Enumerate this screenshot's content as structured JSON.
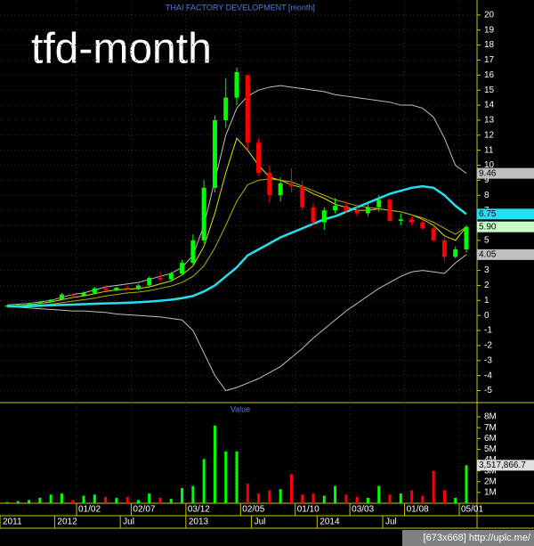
{
  "chart_data": {
    "type": "candlestick",
    "title": "THAI FACTORY DEVELOPMENT [month]",
    "subtitle": "tfd-month",
    "volume_title": "Value",
    "watermark": "[673x668] http://uplc.me/",
    "categories": [
      null,
      null,
      null,
      null,
      null,
      null,
      null,
      "01/02",
      null,
      null,
      null,
      null,
      "02/07",
      null,
      null,
      null,
      null,
      "03/12",
      null,
      null,
      null,
      null,
      "02/05",
      null,
      null,
      null,
      null,
      "01/10",
      null,
      null,
      null,
      null,
      "03/03",
      null,
      null,
      null,
      null,
      "01/08",
      null,
      null,
      null,
      null,
      "05/01"
    ],
    "periods": [
      "2011",
      null,
      null,
      null,
      null,
      "2012",
      null,
      null,
      null,
      null,
      null,
      "Jul",
      null,
      null,
      null,
      null,
      null,
      "2013",
      null,
      null,
      null,
      null,
      null,
      "Jul",
      null,
      null,
      null,
      null,
      null,
      "2014",
      null,
      null,
      null,
      null,
      null,
      "Jul",
      null,
      null,
      null,
      null,
      null,
      null,
      null
    ],
    "open": [
      0.6,
      0.65,
      0.7,
      0.8,
      0.9,
      1.05,
      1.4,
      1.3,
      1.5,
      1.8,
      1.7,
      1.85,
      1.75,
      2.0,
      2.5,
      2.4,
      2.8,
      3.5,
      5.0,
      8.5,
      13.0,
      14.5,
      16.0,
      11.5,
      9.5,
      8.0,
      8.8,
      8.6,
      7.2,
      6.2,
      7.0,
      7.3,
      7.0,
      6.8,
      7.2,
      7.7,
      6.3,
      6.4,
      6.2,
      5.8,
      5.0,
      3.9,
      4.4
    ],
    "high": [
      0.7,
      0.75,
      0.85,
      0.95,
      1.1,
      1.5,
      1.5,
      1.6,
      1.9,
      2.0,
      1.9,
      2.0,
      2.1,
      2.6,
      2.9,
      2.9,
      3.7,
      5.4,
      9.0,
      13.3,
      15.8,
      16.5,
      16.0,
      11.8,
      10.0,
      9.2,
      9.8,
      9.0,
      7.5,
      7.2,
      7.8,
      7.6,
      7.4,
      7.5,
      8.0,
      7.8,
      6.8,
      6.6,
      6.4,
      6.0,
      5.2,
      4.6,
      6.0
    ],
    "low": [
      0.55,
      0.6,
      0.65,
      0.75,
      0.85,
      1.0,
      1.2,
      1.25,
      1.45,
      1.6,
      1.6,
      1.7,
      1.7,
      1.9,
      2.3,
      2.3,
      2.7,
      3.4,
      4.8,
      8.2,
      12.5,
      14.0,
      11.0,
      9.3,
      7.5,
      7.6,
      8.2,
      7.0,
      6.0,
      5.7,
      6.8,
      6.8,
      6.6,
      6.6,
      6.9,
      6.2,
      6.0,
      6.0,
      5.7,
      4.9,
      3.6,
      3.8,
      4.2
    ],
    "close": [
      0.65,
      0.7,
      0.8,
      0.9,
      1.05,
      1.4,
      1.3,
      1.5,
      1.8,
      1.7,
      1.85,
      1.75,
      2.0,
      2.5,
      2.4,
      2.8,
      3.5,
      5.0,
      8.5,
      13.0,
      14.5,
      16.2,
      11.5,
      9.5,
      8.0,
      8.8,
      8.6,
      7.2,
      6.2,
      7.0,
      7.3,
      7.0,
      6.8,
      7.2,
      7.7,
      6.3,
      6.4,
      6.2,
      5.8,
      5.0,
      3.9,
      4.4,
      5.9
    ],
    "volume": [
      100000,
      200000,
      300000,
      500000,
      800000,
      900000,
      300000,
      700000,
      800000,
      600000,
      500000,
      600000,
      300000,
      900000,
      500000,
      400000,
      1400000,
      1600000,
      4100000,
      7200000,
      4800000,
      4800000,
      1800000,
      900000,
      1200000,
      1300000,
      2700000,
      800000,
      900000,
      700000,
      1600000,
      800000,
      600000,
      500000,
      1600000,
      800000,
      900000,
      1200000,
      700000,
      3000000,
      1200000,
      500000,
      3517866.7
    ],
    "up_color": "#00ff00",
    "down_color": "#ff0000",
    "overlays": [
      {
        "color": "#c0c0c0",
        "values": [
          0.7,
          0.75,
          0.8,
          0.9,
          1.0,
          1.2,
          1.4,
          1.5,
          1.7,
          1.9,
          2.0,
          2.1,
          2.2,
          2.4,
          2.6,
          2.8,
          3.2,
          4.0,
          6.0,
          9.0,
          12.0,
          13.8,
          14.6,
          15.0,
          15.2,
          15.3,
          15.2,
          15.1,
          15.0,
          14.9,
          14.7,
          14.6,
          14.5,
          14.4,
          14.3,
          14.2,
          14.0,
          14.0,
          13.8,
          13.2,
          11.8,
          10.0,
          9.46
        ]
      },
      {
        "color": "#c0c0c0",
        "values": [
          0.6,
          0.55,
          0.5,
          0.45,
          0.4,
          0.35,
          0.3,
          0.3,
          0.25,
          0.2,
          0.1,
          0.05,
          0,
          -0.05,
          -0.1,
          -0.2,
          -0.3,
          -1.0,
          -2.5,
          -4.0,
          -5.0,
          -4.8,
          -4.5,
          -4.2,
          -3.8,
          -3.4,
          -2.8,
          -2.2,
          -1.5,
          -0.9,
          -0.3,
          0.3,
          0.8,
          1.3,
          1.8,
          2.2,
          2.6,
          2.9,
          3.0,
          2.9,
          2.8,
          3.5,
          4.05
        ]
      },
      {
        "color": "#e0e000",
        "values": [
          0.6,
          0.65,
          0.7,
          0.8,
          0.9,
          1.05,
          1.2,
          1.3,
          1.45,
          1.6,
          1.7,
          1.75,
          1.8,
          1.9,
          2.1,
          2.3,
          2.7,
          3.3,
          4.6,
          6.8,
          9.5,
          11.8,
          11.0,
          10.0,
          9.2,
          9.0,
          8.7,
          8.5,
          8.1,
          7.8,
          7.4,
          7.2,
          7.0,
          7.0,
          7.1,
          7.0,
          6.9,
          6.7,
          6.4,
          6.0,
          5.3,
          5.0,
          5.9
        ]
      },
      {
        "color": "#b0b000",
        "values": [
          0.6,
          0.6,
          0.65,
          0.7,
          0.75,
          0.85,
          0.95,
          1.05,
          1.15,
          1.3,
          1.4,
          1.5,
          1.55,
          1.65,
          1.8,
          1.95,
          2.2,
          2.6,
          3.3,
          4.5,
          6.0,
          7.6,
          8.7,
          9.0,
          9.1,
          9.0,
          8.9,
          8.6,
          8.3,
          8.0,
          7.7,
          7.5,
          7.3,
          7.2,
          7.1,
          7.0,
          6.9,
          6.7,
          6.5,
          6.2,
          5.8,
          5.4,
          5.9
        ]
      },
      {
        "color": "#22e0f0",
        "values": [
          0.6,
          0.6,
          0.62,
          0.65,
          0.68,
          0.7,
          0.72,
          0.75,
          0.78,
          0.8,
          0.82,
          0.85,
          0.88,
          0.92,
          0.98,
          1.05,
          1.15,
          1.3,
          1.6,
          2.0,
          2.6,
          3.2,
          4.0,
          4.4,
          4.8,
          5.2,
          5.5,
          5.8,
          6.1,
          6.4,
          6.6,
          6.9,
          7.2,
          7.5,
          7.8,
          8.1,
          8.3,
          8.5,
          8.6,
          8.5,
          8.0,
          7.3,
          6.75
        ]
      }
    ],
    "price_labels": [
      {
        "value": 9.46,
        "label": "9.46",
        "color": "#c0c0c0"
      },
      {
        "value": 6.75,
        "label": "6.75",
        "color": "#22e0f0"
      },
      {
        "value": 5.9,
        "label": "5.90",
        "color": "#c8ffc8"
      },
      {
        "value": 4.05,
        "label": "4.05",
        "color": "#c0c0c0"
      }
    ],
    "volume_label": {
      "value": 3517866.7,
      "label": "3,517,866.7"
    },
    "ylim": [
      -5.8,
      21
    ],
    "yticks": [
      -5,
      -4,
      -3,
      -2,
      -1,
      0,
      1,
      2,
      3,
      4,
      5,
      6,
      7,
      8,
      9,
      10,
      11,
      12,
      13,
      14,
      15,
      16,
      17,
      18,
      19,
      20
    ],
    "vlim": [
      0,
      8500000
    ],
    "vticks": [
      {
        "value": 1000000,
        "label": "1M"
      },
      {
        "value": 2000000,
        "label": "2M"
      },
      {
        "value": 3000000,
        "label": "3M"
      },
      {
        "value": 4000000,
        "label": "4M"
      },
      {
        "value": 5000000,
        "label": "5M"
      },
      {
        "value": 6000000,
        "label": "6M"
      },
      {
        "value": 7000000,
        "label": "7M"
      },
      {
        "value": 8000000,
        "label": "8M"
      }
    ],
    "grid": true
  }
}
